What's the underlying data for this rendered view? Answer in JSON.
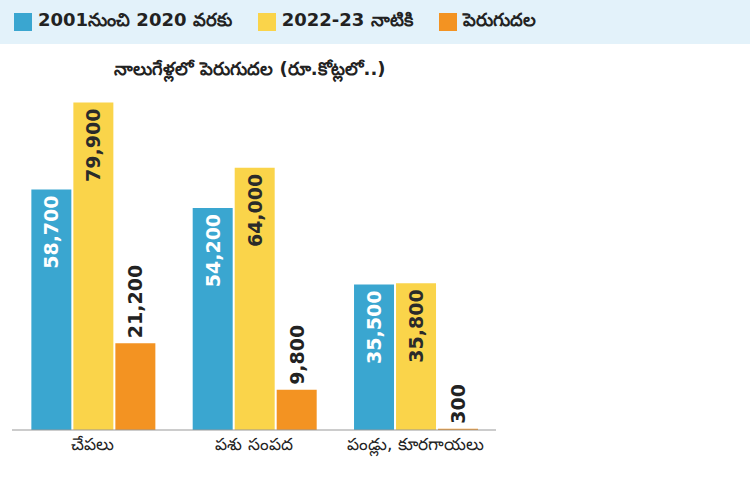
{
  "chart_data": {
    "type": "bar",
    "subtitle": "నాలుగేళ్లలో పెరుగుదల (రూ.కోట్లలో..)",
    "categories": [
      "చేపలు",
      "పశు సంపద",
      "పండ్లు, కూరగాయలు"
    ],
    "series": [
      {
        "name": "2001నుంచి 2020 వరకు",
        "color": "#3aa6d0",
        "values": [
          58700,
          54200,
          35500
        ],
        "value_labels": [
          "58,700",
          "54,200",
          "35,500"
        ]
      },
      {
        "name": "2022-23 నాటికి",
        "color": "#fad44a",
        "values": [
          79900,
          64000,
          35800
        ],
        "value_labels": [
          "79,900",
          "64,000",
          "35,800"
        ]
      },
      {
        "name": "పెరుగుదల",
        "color": "#f39322",
        "values": [
          21200,
          9800,
          300
        ],
        "value_labels": [
          "21,200",
          "9,800",
          "300"
        ]
      }
    ],
    "ylim": [
      0,
      82000
    ],
    "data_labels": true,
    "tick_labels": "x",
    "legend": "top",
    "grid": false
  }
}
